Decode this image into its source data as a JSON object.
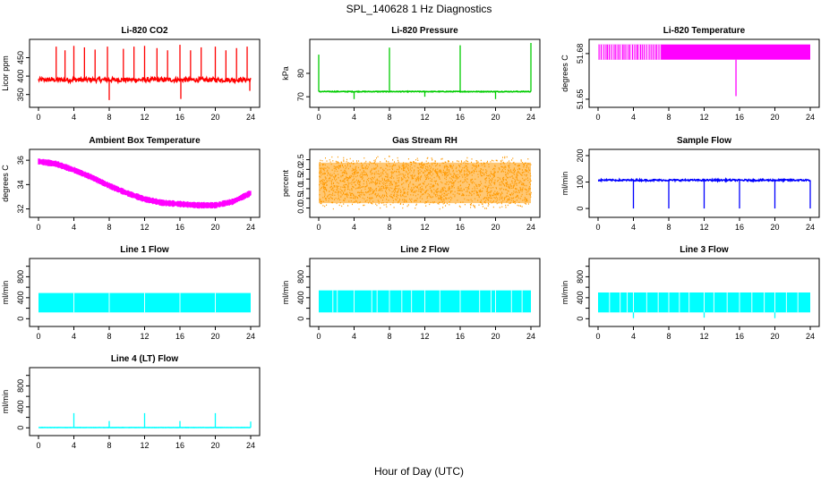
{
  "figure": {
    "title": "SPL_140628  1 Hz Diagnostics",
    "xlabel": "Hour of Day (UTC)"
  },
  "chart_data": [
    {
      "type": "line",
      "title": "Li-820 CO2",
      "ylabel": "Licor ppm",
      "color": "#ff0000",
      "xlim": [
        0,
        24
      ],
      "xticks": [
        0,
        4,
        8,
        12,
        16,
        20,
        24
      ],
      "ylim": [
        325,
        490
      ],
      "yticks": [
        350,
        400,
        450
      ],
      "ytick_labels": [
        "350",
        "400",
        "450"
      ],
      "baseline": 390,
      "noise": 6,
      "spikes": [
        [
          2,
          480
        ],
        [
          3,
          470
        ],
        [
          4,
          482
        ],
        [
          5.2,
          478
        ],
        [
          6.4,
          472
        ],
        [
          7.8,
          480
        ],
        [
          8.0,
          335
        ],
        [
          9.6,
          474
        ],
        [
          10.8,
          480
        ],
        [
          12,
          482
        ],
        [
          13.4,
          476
        ],
        [
          14.6,
          470
        ],
        [
          16,
          485
        ],
        [
          16.1,
          338
        ],
        [
          17.2,
          470
        ],
        [
          18.4,
          478
        ],
        [
          20,
          480
        ],
        [
          21.2,
          470
        ],
        [
          22.4,
          476
        ],
        [
          23.6,
          480
        ],
        [
          23.9,
          360
        ]
      ]
    },
    {
      "type": "line",
      "title": "Li-820 Pressure",
      "ylabel": "kPa",
      "color": "#00cc00",
      "xlim": [
        0,
        24
      ],
      "xticks": [
        0,
        4,
        8,
        12,
        16,
        20,
        24
      ],
      "ylim": [
        67,
        93
      ],
      "yticks": [
        70,
        80
      ],
      "ytick_labels": [
        "70",
        "80"
      ],
      "baseline": 72.2,
      "noise": 0.15,
      "spikes": [
        [
          0,
          88
        ],
        [
          4,
          69
        ],
        [
          8,
          91
        ],
        [
          12,
          70
        ],
        [
          16,
          92
        ],
        [
          20,
          69
        ],
        [
          24,
          93
        ]
      ]
    },
    {
      "type": "line",
      "title": "Li-820 Temperature",
      "ylabel": "degrees C",
      "color": "#ff00ff",
      "xlim": [
        0,
        24
      ],
      "xticks": [
        0,
        4,
        8,
        12,
        16,
        20,
        24
      ],
      "ylim": [
        51.647,
        51.687
      ],
      "yticks": [
        51.65,
        51.68
      ],
      "ytick_labels": [
        "51.65",
        "51.68"
      ],
      "band": [
        51.676,
        51.686
      ],
      "dropout_until": 7.2,
      "spikes": [
        [
          15.6,
          51.652
        ]
      ]
    },
    {
      "type": "line",
      "title": "Ambient Box Temperature",
      "ylabel": "degrees C",
      "color": "#ff00ff",
      "xlim": [
        0,
        24
      ],
      "xticks": [
        0,
        4,
        8,
        12,
        16,
        20,
        24
      ],
      "ylim": [
        31.6,
        36.6
      ],
      "yticks": [
        32,
        34,
        36
      ],
      "ytick_labels": [
        "32",
        "34",
        "36"
      ],
      "curve": [
        [
          0,
          35.9
        ],
        [
          2,
          35.7
        ],
        [
          4,
          35.2
        ],
        [
          6,
          34.6
        ],
        [
          8,
          33.9
        ],
        [
          10,
          33.3
        ],
        [
          12,
          32.8
        ],
        [
          14,
          32.5
        ],
        [
          16,
          32.4
        ],
        [
          18,
          32.3
        ],
        [
          20,
          32.3
        ],
        [
          22,
          32.6
        ],
        [
          24,
          33.3
        ]
      ],
      "noise": 0.55
    },
    {
      "type": "scatter",
      "title": "Gas Stream RH",
      "ylabel": "percent",
      "color": "#ff9900",
      "xlim": [
        0,
        24
      ],
      "xticks": [
        0,
        4,
        8,
        12,
        16,
        20,
        24
      ],
      "ylim": [
        -0.3,
        2.85
      ],
      "yticks": [
        0.0,
        0.5,
        1.0,
        1.5,
        2.0,
        2.5
      ],
      "ytick_labels": [
        "0.0",
        "0.5",
        "1.0",
        "1.5",
        "2.0",
        "2.5"
      ],
      "band": [
        -0.1,
        2.7
      ]
    },
    {
      "type": "line",
      "title": "Sample Flow",
      "ylabel": "ml/min",
      "color": "#0000ff",
      "xlim": [
        0,
        24
      ],
      "xticks": [
        0,
        4,
        8,
        12,
        16,
        20,
        24
      ],
      "ylim": [
        -20,
        210
      ],
      "yticks": [
        0,
        100,
        200
      ],
      "ytick_labels": [
        "0",
        "100",
        "200"
      ],
      "baseline": 107,
      "noise": 3,
      "spikes": [
        [
          4,
          0
        ],
        [
          8,
          0
        ],
        [
          12,
          0
        ],
        [
          16,
          0
        ],
        [
          20,
          0
        ],
        [
          24,
          0
        ]
      ]
    },
    {
      "type": "line",
      "title": "Line 1 Flow",
      "ylabel": "ml/min",
      "color": "#00ffff",
      "xlim": [
        0,
        24
      ],
      "xticks": [
        0,
        4,
        8,
        12,
        16,
        20,
        24
      ],
      "ylim": [
        -80,
        1080
      ],
      "yticks": [
        0,
        200,
        400,
        600,
        800,
        1000
      ],
      "ytick_labels": [
        "0",
        "",
        "400",
        "",
        "800",
        ""
      ],
      "band": [
        120,
        490
      ],
      "gaps": [
        4,
        8,
        12,
        16,
        20
      ]
    },
    {
      "type": "line",
      "title": "Line 2 Flow",
      "ylabel": "ml/min",
      "color": "#00ffff",
      "xlim": [
        0,
        24
      ],
      "xticks": [
        0,
        4,
        8,
        12,
        16,
        20,
        24
      ],
      "ylim": [
        -80,
        1080
      ],
      "yticks": [
        0,
        200,
        400,
        600,
        800,
        1000
      ],
      "ytick_labels": [
        "0",
        "",
        "400",
        "",
        "800",
        ""
      ],
      "band": [
        120,
        540
      ],
      "gaps": [
        1.6,
        2.1,
        4,
        6,
        6.6,
        8,
        9.4,
        10.5,
        12,
        13.7,
        16,
        18.2,
        19.5,
        20,
        21.8,
        23
      ]
    },
    {
      "type": "line",
      "title": "Line 3 Flow",
      "ylabel": "ml/min",
      "color": "#00ffff",
      "xlim": [
        0,
        24
      ],
      "xticks": [
        0,
        4,
        8,
        12,
        16,
        20,
        24
      ],
      "ylim": [
        -80,
        1080
      ],
      "yticks": [
        0,
        200,
        400,
        600,
        800,
        1000
      ],
      "ytick_labels": [
        "0",
        "",
        "400",
        "",
        "800",
        ""
      ],
      "band": [
        120,
        500
      ],
      "gaps": [
        1.3,
        2.5,
        3.3,
        4,
        5.5,
        6.8,
        8,
        9.2,
        10.3,
        12,
        13.1,
        14.6,
        16,
        17.4,
        18.8,
        20,
        21.3,
        22.6
      ],
      "spikes": [
        [
          4,
          10
        ],
        [
          12,
          20
        ],
        [
          20,
          10
        ]
      ]
    },
    {
      "type": "line",
      "title": "Line 4 (LT) Flow",
      "ylabel": "ml/min",
      "color": "#00ffff",
      "xlim": [
        0,
        24
      ],
      "xticks": [
        0,
        4,
        8,
        12,
        16,
        20,
        24
      ],
      "ylim": [
        -80,
        1080
      ],
      "yticks": [
        0,
        200,
        400,
        600,
        800,
        1000
      ],
      "ytick_labels": [
        "0",
        "",
        "400",
        "",
        "800",
        ""
      ],
      "baseline": 5,
      "noise": 2,
      "spikes": [
        [
          4,
          280
        ],
        [
          8,
          130
        ],
        [
          12,
          280
        ],
        [
          16,
          130
        ],
        [
          20,
          280
        ],
        [
          24,
          120
        ]
      ]
    }
  ]
}
